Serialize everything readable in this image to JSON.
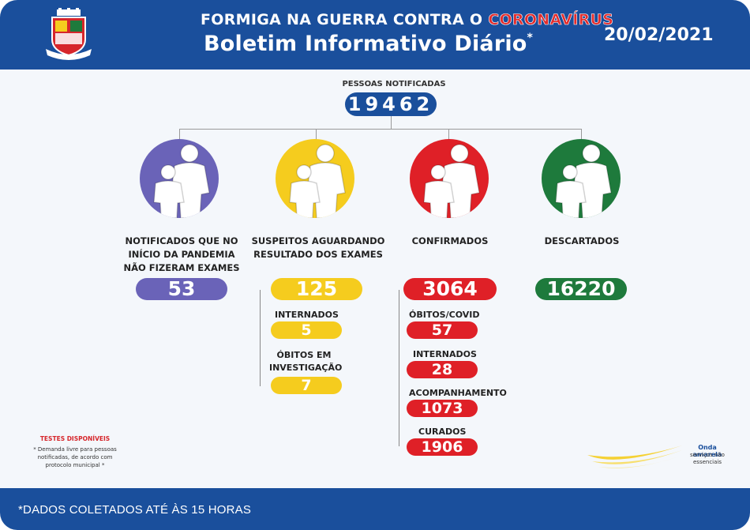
{
  "header": {
    "title_line1_prefix": "FORMIGA NA GUERRA CONTRA O ",
    "title_line1_highlight": "CORONAVÍRUS",
    "title_line2": "Boletim Informativo Diário",
    "title_line2_mark": "*",
    "date": "20/02/2021",
    "crest_icon": "formiga-crest-icon"
  },
  "notified": {
    "label": "PESSOAS NOTIFICADAS",
    "value": "19462"
  },
  "colors": {
    "blue": "#1a4f9c",
    "purple": "#6a63b8",
    "yellow": "#f5cc1e",
    "red": "#df2027",
    "green": "#1e7a3c"
  },
  "categories": [
    {
      "icon": "family-icon",
      "label_lines": [
        "NOTIFICADOS QUE NO",
        "INÍCIO DA PANDEMIA",
        "NÃO FIZERAM EXAMES"
      ],
      "value": "53"
    },
    {
      "icon": "family-icon",
      "label_lines": [
        "SUSPEITOS AGUARDANDO",
        "RESULTADO DOS EXAMES"
      ],
      "value": "125"
    },
    {
      "icon": "family-icon",
      "label_lines": [
        "CONFIRMADOS"
      ],
      "value": "3064"
    },
    {
      "icon": "family-icon",
      "label_lines": [
        "DESCARTADOS"
      ],
      "value": "16220"
    }
  ],
  "suspects_details": [
    {
      "label_lines": [
        "INTERNADOS"
      ],
      "value": "5"
    },
    {
      "label_lines": [
        "ÓBITOS EM",
        "INVESTIGAÇÃO"
      ],
      "value": "7"
    }
  ],
  "confirmed_details": [
    {
      "label": "ÓBITOS/COVID",
      "value": "57"
    },
    {
      "label": "INTERNADOS",
      "value": "28"
    },
    {
      "label": "ACOMPANHAMENTO",
      "value": "1073"
    },
    {
      "label": "CURADOS",
      "value": "1906"
    }
  ],
  "tests": {
    "title": "TESTES DISPONÍVEIS",
    "note_lines": [
      "* Demanda livre para pessoas",
      "notificadas, de acordo com",
      "protocolo municipal *"
    ]
  },
  "onda": {
    "title": "Onda amarela",
    "note_lines": [
      "serviços não",
      "essenciais"
    ],
    "icon": "yellow-wave-icon"
  },
  "footer": {
    "text": "*DADOS COLETADOS ATÉ ÀS 15 HORAS"
  }
}
